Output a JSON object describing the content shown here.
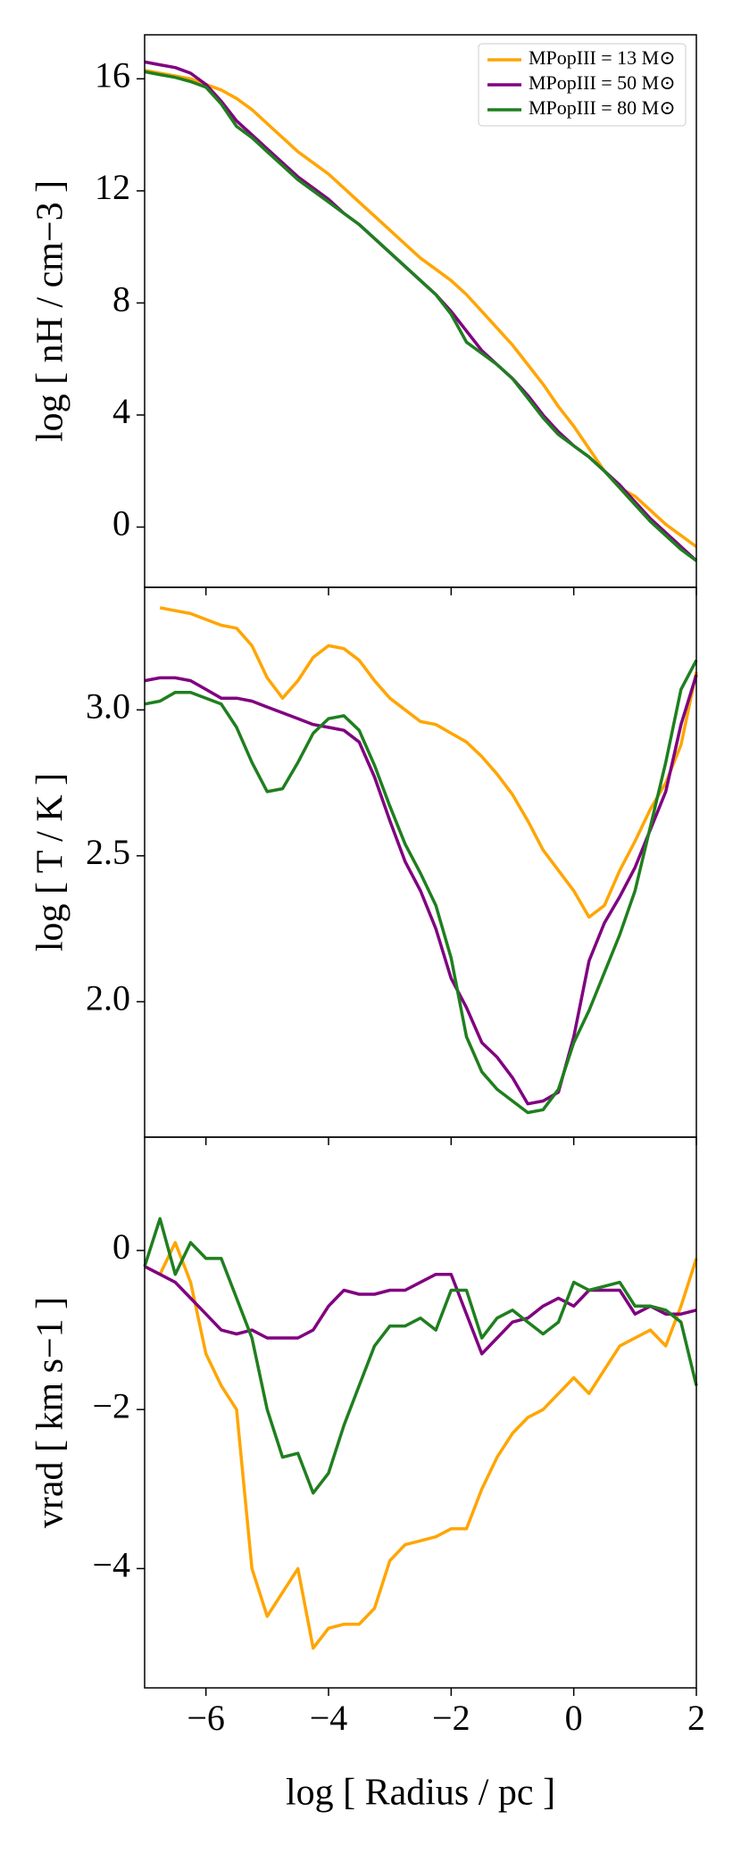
{
  "chart_data": [
    {
      "type": "line",
      "ylabel": "log [ nH / cm−3 ]",
      "xlim": [
        -7,
        2
      ],
      "ylim": [
        -2.15,
        17.57
      ],
      "yticks": [
        0,
        4,
        8,
        12,
        16
      ],
      "legend": "upper right",
      "x": [
        -7,
        -6.75,
        -6.5,
        -6.25,
        -6,
        -5.75,
        -5.5,
        -5.25,
        -5,
        -4.75,
        -4.5,
        -4.25,
        -4,
        -3.75,
        -3.5,
        -3.25,
        -3,
        -2.75,
        -2.5,
        -2.25,
        -2,
        -1.75,
        -1.5,
        -1.25,
        -1,
        -0.75,
        -0.5,
        -0.25,
        0,
        0.25,
        0.5,
        0.75,
        1,
        1.25,
        1.5,
        1.75,
        2
      ],
      "series": [
        {
          "name": "MPopIII = 13 M⊙",
          "color": "#ffa500",
          "values": [
            16.3,
            16.2,
            16.1,
            16.0,
            15.8,
            15.6,
            15.3,
            14.9,
            14.4,
            13.9,
            13.4,
            13.0,
            12.6,
            12.1,
            11.6,
            11.1,
            10.6,
            10.1,
            9.6,
            9.2,
            8.8,
            8.3,
            7.7,
            7.1,
            6.5,
            5.8,
            5.1,
            4.3,
            3.6,
            2.8,
            2.0,
            1.4,
            1.1,
            0.6,
            0.1,
            -0.3,
            -0.7
          ]
        },
        {
          "name": "MPopIII = 50 M⊙",
          "color": "#800080",
          "values": [
            16.6,
            16.5,
            16.4,
            16.2,
            15.8,
            15.2,
            14.5,
            14.0,
            13.5,
            13.0,
            12.5,
            12.1,
            11.7,
            11.2,
            10.8,
            10.3,
            9.8,
            9.3,
            8.8,
            8.3,
            7.7,
            7.0,
            6.3,
            5.8,
            5.3,
            4.7,
            4.0,
            3.4,
            2.9,
            2.5,
            2.0,
            1.5,
            0.9,
            0.3,
            -0.2,
            -0.7,
            -1.2
          ]
        },
        {
          "name": "MPopIII = 80 M⊙",
          "color": "#1f7f1f",
          "values": [
            16.25,
            16.15,
            16.05,
            15.9,
            15.7,
            15.1,
            14.3,
            13.9,
            13.4,
            12.9,
            12.4,
            12.0,
            11.6,
            11.2,
            10.8,
            10.3,
            9.8,
            9.3,
            8.8,
            8.3,
            7.6,
            6.6,
            6.2,
            5.8,
            5.3,
            4.6,
            3.9,
            3.3,
            2.9,
            2.5,
            2.0,
            1.4,
            0.8,
            0.2,
            -0.3,
            -0.8,
            -1.2
          ]
        }
      ]
    },
    {
      "type": "line",
      "ylabel": "log [ T / K ]",
      "xlim": [
        -7,
        2
      ],
      "ylim": [
        1.536,
        3.42
      ],
      "yticks": [
        {
          "value": 2,
          "label": "2.0"
        },
        2.5,
        {
          "value": 3,
          "label": "3.0"
        }
      ],
      "x": [
        -7,
        -6.75,
        -6.5,
        -6.25,
        -6,
        -5.75,
        -5.5,
        -5.25,
        -5,
        -4.75,
        -4.5,
        -4.25,
        -4,
        -3.75,
        -3.5,
        -3.25,
        -3,
        -2.75,
        -2.5,
        -2.25,
        -2,
        -1.75,
        -1.5,
        -1.25,
        -1,
        -0.75,
        -0.5,
        -0.25,
        0,
        0.25,
        0.5,
        0.75,
        1,
        1.25,
        1.5,
        1.75,
        2
      ],
      "series": [
        {
          "color": "#ffa500",
          "values": [
            null,
            3.35,
            3.34,
            3.33,
            3.31,
            3.29,
            3.28,
            3.22,
            3.11,
            3.04,
            3.1,
            3.18,
            3.22,
            3.21,
            3.17,
            3.1,
            3.04,
            3.0,
            2.96,
            2.95,
            2.92,
            2.89,
            2.84,
            2.78,
            2.71,
            2.62,
            2.52,
            2.45,
            2.38,
            2.29,
            2.33,
            2.45,
            2.55,
            2.66,
            2.75,
            2.88,
            3.13
          ]
        },
        {
          "color": "#800080",
          "values": [
            3.1,
            3.11,
            3.11,
            3.1,
            3.07,
            3.04,
            3.04,
            3.03,
            3.01,
            2.99,
            2.97,
            2.95,
            2.94,
            2.93,
            2.89,
            2.77,
            2.62,
            2.48,
            2.38,
            2.25,
            2.08,
            1.98,
            1.86,
            1.81,
            1.74,
            1.65,
            1.66,
            1.69,
            1.88,
            2.14,
            2.27,
            2.36,
            2.46,
            2.59,
            2.72,
            2.95,
            3.12
          ]
        },
        {
          "color": "#1f7f1f",
          "values": [
            3.02,
            3.03,
            3.06,
            3.06,
            3.04,
            3.02,
            2.94,
            2.82,
            2.72,
            2.73,
            2.82,
            2.92,
            2.97,
            2.98,
            2.93,
            2.81,
            2.67,
            2.54,
            2.44,
            2.33,
            2.15,
            1.88,
            1.76,
            1.7,
            1.66,
            1.62,
            1.63,
            1.7,
            1.86,
            1.97,
            2.1,
            2.23,
            2.38,
            2.6,
            2.82,
            3.07,
            3.17
          ]
        }
      ]
    },
    {
      "type": "line",
      "ylabel": "vrad [ km s−1 ]",
      "xlabel": "log [ Radius / pc ]",
      "xlim": [
        -7,
        2
      ],
      "ylim": [
        -5.5,
        1.425
      ],
      "xticks": [
        {
          "value": -6,
          "label": "−6"
        },
        {
          "value": -4,
          "label": "−4"
        },
        {
          "value": -2,
          "label": "−2"
        },
        0,
        2
      ],
      "yticks": [
        {
          "value": -4,
          "label": "−4"
        },
        {
          "value": -2,
          "label": "−2"
        },
        0
      ],
      "x": [
        -7,
        -6.75,
        -6.5,
        -6.25,
        -6,
        -5.75,
        -5.5,
        -5.25,
        -5,
        -4.75,
        -4.5,
        -4.25,
        -4,
        -3.75,
        -3.5,
        -3.25,
        -3,
        -2.75,
        -2.5,
        -2.25,
        -2,
        -1.75,
        -1.5,
        -1.25,
        -1,
        -0.75,
        -0.5,
        -0.25,
        0,
        0.25,
        0.5,
        0.75,
        1,
        1.25,
        1.5,
        1.75,
        2
      ],
      "series": [
        {
          "color": "#ffa500",
          "values": [
            -0.2,
            -0.3,
            0.1,
            -0.4,
            -1.3,
            -1.7,
            -2.0,
            -4.0,
            -4.6,
            -4.3,
            -4.0,
            -5.0,
            -4.75,
            -4.7,
            -4.7,
            -4.5,
            -3.9,
            -3.7,
            -3.65,
            -3.6,
            -3.5,
            -3.5,
            -3.0,
            -2.6,
            -2.3,
            -2.1,
            -2.0,
            -1.8,
            -1.6,
            -1.8,
            -1.5,
            -1.2,
            -1.1,
            -1.0,
            -1.2,
            -0.7,
            -0.1
          ]
        },
        {
          "color": "#800080",
          "values": [
            -0.2,
            -0.3,
            -0.4,
            -0.6,
            -0.8,
            -1.0,
            -1.05,
            -1.0,
            -1.1,
            -1.1,
            -1.1,
            -1.0,
            -0.7,
            -0.5,
            -0.55,
            -0.55,
            -0.5,
            -0.5,
            -0.4,
            -0.3,
            -0.3,
            -0.8,
            -1.3,
            -1.1,
            -0.9,
            -0.85,
            -0.7,
            -0.6,
            -0.7,
            -0.5,
            -0.5,
            -0.5,
            -0.8,
            -0.7,
            -0.8,
            -0.8,
            -0.75
          ]
        },
        {
          "color": "#1f7f1f",
          "values": [
            -0.2,
            0.4,
            -0.3,
            0.1,
            -0.1,
            -0.1,
            -0.6,
            -1.1,
            -2.0,
            -2.6,
            -2.55,
            -3.05,
            -2.8,
            -2.2,
            -1.7,
            -1.2,
            -0.95,
            -0.95,
            -0.85,
            -1.0,
            -0.5,
            -0.5,
            -1.1,
            -0.85,
            -0.75,
            -0.9,
            -1.05,
            -0.9,
            -0.4,
            -0.5,
            -0.45,
            -0.4,
            -0.7,
            -0.7,
            -0.75,
            -0.9,
            -1.7
          ]
        }
      ]
    }
  ]
}
